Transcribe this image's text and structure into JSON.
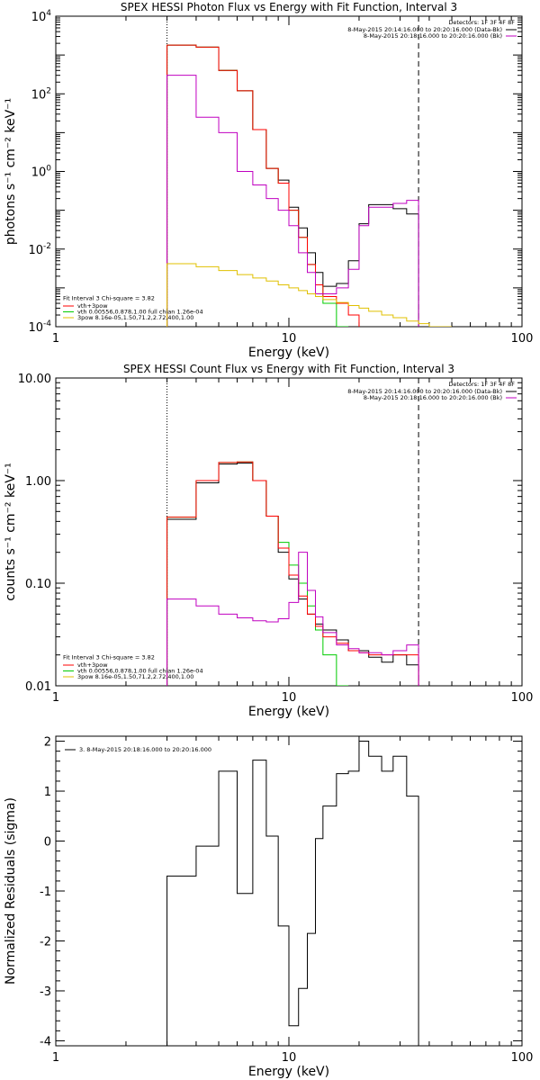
{
  "chart_data": [
    {
      "type": "line",
      "title": "SPEX HESSI Photon Flux vs Energy with Fit Function, Interval 3",
      "xlabel": "Energy (keV)",
      "ylabel": "photons s⁻¹ cm⁻² keV⁻¹",
      "xscale": "log",
      "yscale": "log",
      "xlim": [
        1,
        100
      ],
      "ylim": [
        0.0001,
        10000
      ],
      "xticks": [
        {
          "v": 1,
          "label": "1"
        },
        {
          "v": 10,
          "label": "10"
        },
        {
          "v": 100,
          "label": "100"
        }
      ],
      "yticks": [
        {
          "v": 0.0001,
          "base": "10",
          "exp": "-4"
        },
        {
          "v": 0.01,
          "base": "10",
          "exp": "-2"
        },
        {
          "v": 1,
          "base": "10",
          "exp": "0"
        },
        {
          "v": 100,
          "base": "10",
          "exp": "2"
        },
        {
          "v": 10000,
          "base": "10",
          "exp": "4"
        }
      ],
      "vlines": [
        {
          "x": 3.0,
          "style": "dotted"
        },
        {
          "x": 36,
          "style": "dashed"
        }
      ],
      "legend_top": {
        "header": "Detectors: 1F 3F 4F 8F",
        "entries": [
          {
            "text": "8-May-2015 20:14:16.000 to 20:20:16.000 (Data-Bk)",
            "color": "#000000"
          },
          {
            "text": "8-May-2015 20:18:16.000 to 20:20:16.000 (Bk)",
            "color": "#c000c0"
          }
        ]
      },
      "legend_bottom": {
        "header": "Fit Interval 3   Chi-square = 3.82",
        "entries": [
          {
            "text": "vth+3pow",
            "color": "#ff0000"
          },
          {
            "text": "vth 0.00556,0.878,1.00  full chian 1.26e-04",
            "color": "#00cc00"
          },
          {
            "text": "3pow 8.16e-05,1.50,71.2,2.72,400,1.00",
            "color": "#e0c000"
          }
        ]
      },
      "series": [
        {
          "color": "#000000",
          "edges": [
            3,
            4,
            5,
            6,
            7,
            8,
            9,
            10,
            11,
            12,
            13,
            14,
            16,
            18,
            20,
            22,
            25,
            28,
            32,
            36
          ],
          "values": [
            1800,
            1600,
            400,
            120,
            12,
            1.2,
            0.6,
            0.12,
            0.035,
            0.008,
            0.0025,
            0.0011,
            0.0013,
            0.005,
            0.045,
            0.14,
            0.14,
            0.11,
            0.08
          ]
        },
        {
          "color": "#00cc00",
          "edges": [
            3,
            4,
            5,
            6,
            7,
            8,
            9,
            10,
            11,
            12,
            13,
            14,
            16,
            18
          ],
          "values": [
            1800,
            1600,
            400,
            120,
            12,
            1.2,
            0.5,
            0.1,
            0.02,
            0.004,
            0.0012,
            0.0004,
            0.0001
          ]
        },
        {
          "color": "#ff0000",
          "edges": [
            3,
            4,
            5,
            6,
            7,
            8,
            9,
            10,
            11,
            12,
            13,
            14,
            16,
            18,
            20
          ],
          "values": [
            1800,
            1600,
            400,
            120,
            12,
            1.2,
            0.5,
            0.1,
            0.02,
            0.004,
            0.0012,
            0.0006,
            0.0004,
            0.0002
          ]
        },
        {
          "color": "#c000c0",
          "edges": [
            3,
            4,
            5,
            6,
            7,
            8,
            9,
            10,
            11,
            12,
            13,
            14,
            16,
            18,
            20,
            22,
            25,
            28,
            32,
            36
          ],
          "values": [
            300,
            25,
            10,
            1,
            0.45,
            0.2,
            0.1,
            0.04,
            0.008,
            0.0025,
            0.0007,
            0.0007,
            0.001,
            0.003,
            0.04,
            0.12,
            0.12,
            0.15,
            0.18
          ]
        },
        {
          "color": "#e0c000",
          "edges": [
            3,
            4,
            5,
            6,
            7,
            8,
            9,
            10,
            11,
            12,
            13,
            14,
            16,
            18,
            20,
            22,
            25,
            28,
            32,
            36,
            40,
            45,
            50
          ],
          "values": [
            0.0042,
            0.0035,
            0.0028,
            0.0022,
            0.0018,
            0.0015,
            0.0012,
            0.001,
            0.00085,
            0.0007,
            0.0006,
            0.0005,
            0.00042,
            0.00035,
            0.0003,
            0.00025,
            0.0002,
            0.00017,
            0.00014,
            0.00012,
            0.0001,
            9e-05
          ]
        }
      ]
    },
    {
      "type": "line",
      "title": "SPEX HESSI Count Flux vs Energy with Fit Function, Interval 3",
      "xlabel": "Energy (keV)",
      "ylabel": "counts s⁻¹ cm⁻² keV⁻¹",
      "xscale": "log",
      "yscale": "log",
      "xlim": [
        1,
        100
      ],
      "ylim": [
        0.01,
        10
      ],
      "xticks": [
        {
          "v": 1,
          "label": "1"
        },
        {
          "v": 10,
          "label": "10"
        },
        {
          "v": 100,
          "label": "100"
        }
      ],
      "yticks": [
        {
          "v": 0.01,
          "label": "0.01"
        },
        {
          "v": 0.1,
          "label": "0.10"
        },
        {
          "v": 1,
          "label": "1.00"
        },
        {
          "v": 10,
          "label": "10.00"
        }
      ],
      "vlines": [
        {
          "x": 3.0,
          "style": "dotted"
        },
        {
          "x": 36,
          "style": "dashed"
        }
      ],
      "legend_top": {
        "header": "Detectors: 1F 3F 4F 8F",
        "entries": [
          {
            "text": "8-May-2015 20:14:16.000 to 20:20:16.000 (Data-Bk)",
            "color": "#000000"
          },
          {
            "text": "8-May-2015 20:18:16.000 to 20:20:16.000 (Bk)",
            "color": "#c000c0"
          }
        ]
      },
      "legend_bottom": {
        "header": "Fit Interval 3   Chi-square = 3.82",
        "entries": [
          {
            "text": "vth+3pow",
            "color": "#ff0000"
          },
          {
            "text": "vth 0.00556,0.878,1.00  full chian 1.26e-04",
            "color": "#00cc00"
          },
          {
            "text": "3pow 8.16e-05,1.50,71.2,2.72,400,1.00",
            "color": "#e0c000"
          }
        ]
      },
      "series": [
        {
          "color": "#000000",
          "edges": [
            3,
            4,
            5,
            6,
            7,
            8,
            9,
            10,
            11,
            12,
            13,
            14,
            16,
            18,
            20,
            22,
            25,
            28,
            32,
            36
          ],
          "values": [
            0.42,
            0.95,
            1.45,
            1.48,
            1.0,
            0.45,
            0.2,
            0.11,
            0.07,
            0.05,
            0.04,
            0.035,
            0.028,
            0.022,
            0.022,
            0.019,
            0.017,
            0.02,
            0.016
          ]
        },
        {
          "color": "#00cc00",
          "edges": [
            3,
            4,
            5,
            6,
            7,
            8,
            9,
            10,
            11,
            12,
            13,
            14,
            16,
            18
          ],
          "values": [
            0.44,
            1.0,
            1.5,
            1.52,
            1.0,
            0.45,
            0.25,
            0.15,
            0.1,
            0.06,
            0.035,
            0.02,
            0.01
          ]
        },
        {
          "color": "#ff0000",
          "edges": [
            3,
            4,
            5,
            6,
            7,
            8,
            9,
            10,
            11,
            12,
            13,
            14,
            16,
            18,
            20,
            22,
            25,
            28,
            32,
            36
          ],
          "values": [
            0.44,
            1.0,
            1.5,
            1.52,
            1.0,
            0.45,
            0.22,
            0.12,
            0.075,
            0.05,
            0.038,
            0.03,
            0.026,
            0.022,
            0.021,
            0.02,
            0.02,
            0.02,
            0.02
          ]
        },
        {
          "color": "#c000c0",
          "edges": [
            3,
            4,
            5,
            6,
            7,
            8,
            9,
            10,
            11,
            12,
            13,
            14,
            16,
            18,
            20,
            22,
            25,
            28,
            32,
            36
          ],
          "values": [
            0.07,
            0.06,
            0.05,
            0.046,
            0.043,
            0.042,
            0.045,
            0.065,
            0.2,
            0.085,
            0.047,
            0.033,
            0.025,
            0.023,
            0.021,
            0.021,
            0.02,
            0.022,
            0.025
          ]
        }
      ]
    },
    {
      "type": "line",
      "title": "",
      "xlabel": "Energy (keV)",
      "ylabel": "Normalized Residuals (sigma)",
      "xscale": "log",
      "yscale": "linear",
      "xlim": [
        1,
        100
      ],
      "ylim": [
        -4.1,
        2.1
      ],
      "xticks": [
        {
          "v": 1,
          "label": "1"
        },
        {
          "v": 10,
          "label": "10"
        },
        {
          "v": 100,
          "label": "100"
        }
      ],
      "yticks": [
        {
          "v": 2,
          "label": "2"
        },
        {
          "v": 1,
          "label": "1"
        },
        {
          "v": 0,
          "label": "0"
        },
        {
          "v": -1,
          "label": "-1"
        },
        {
          "v": -2,
          "label": "-2"
        },
        {
          "v": -3,
          "label": "-3"
        },
        {
          "v": -4,
          "label": "-4"
        }
      ],
      "vlines": [],
      "legend_top": {
        "header": "",
        "entries": [
          {
            "text": "3.  8-May-2015 20:18:16.000 to 20:20:16.000",
            "color": "#000000"
          }
        ]
      },
      "legend_bottom": {
        "header": "",
        "entries": []
      },
      "series": [
        {
          "color": "#000000",
          "edges": [
            3,
            4,
            5,
            6,
            7,
            8,
            9,
            10,
            11,
            12,
            13,
            14,
            16,
            18,
            20,
            22,
            25,
            28,
            32,
            36
          ],
          "values": [
            -0.7,
            -0.1,
            1.4,
            -1.05,
            1.62,
            0.1,
            -1.7,
            -3.7,
            -2.95,
            -1.85,
            0.05,
            0.7,
            1.35,
            1.4,
            2.0,
            1.7,
            1.4,
            1.7,
            0.9
          ],
          "drop_start": -4.1,
          "drop_end": -4.1
        }
      ]
    }
  ]
}
